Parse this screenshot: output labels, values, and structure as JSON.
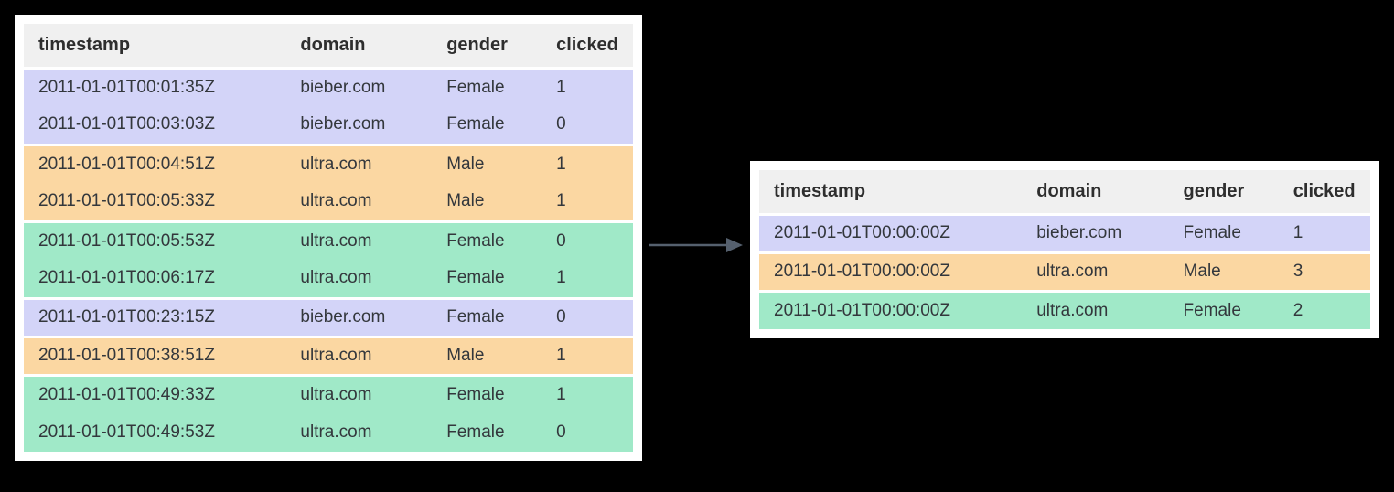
{
  "colors": {
    "background": "#000000",
    "panel": "#ffffff",
    "header_bg": "#f0f0f0",
    "header_text": "#2e2e2e",
    "cell_text": "#33373c",
    "arrow": "#55606e",
    "groups": {
      "bieber_female": "#d3d4f8",
      "ultra_male": "#fbd7a2",
      "ultra_female": "#a0e9c8"
    }
  },
  "left_table": {
    "columns": [
      "timestamp",
      "domain",
      "gender",
      "clicked"
    ],
    "rows": [
      {
        "group": "bieber_female",
        "cells": [
          "2011-01-01T00:01:35Z",
          "bieber.com",
          "Female",
          "1"
        ]
      },
      {
        "group": "bieber_female",
        "cells": [
          "2011-01-01T00:03:03Z",
          "bieber.com",
          "Female",
          "0"
        ]
      },
      {
        "group": "ultra_male",
        "cells": [
          "2011-01-01T00:04:51Z",
          "ultra.com",
          "Male",
          "1"
        ]
      },
      {
        "group": "ultra_male",
        "cells": [
          "2011-01-01T00:05:33Z",
          "ultra.com",
          "Male",
          "1"
        ]
      },
      {
        "group": "ultra_female",
        "cells": [
          "2011-01-01T00:05:53Z",
          "ultra.com",
          "Female",
          "0"
        ]
      },
      {
        "group": "ultra_female",
        "cells": [
          "2011-01-01T00:06:17Z",
          "ultra.com",
          "Female",
          "1"
        ]
      },
      {
        "group": "bieber_female",
        "cells": [
          "2011-01-01T00:23:15Z",
          "bieber.com",
          "Female",
          "0"
        ]
      },
      {
        "group": "ultra_male",
        "cells": [
          "2011-01-01T00:38:51Z",
          "ultra.com",
          "Male",
          "1"
        ]
      },
      {
        "group": "ultra_female",
        "cells": [
          "2011-01-01T00:49:33Z",
          "ultra.com",
          "Female",
          "1"
        ]
      },
      {
        "group": "ultra_female",
        "cells": [
          "2011-01-01T00:49:53Z",
          "ultra.com",
          "Female",
          "0"
        ]
      }
    ]
  },
  "right_table": {
    "columns": [
      "timestamp",
      "domain",
      "gender",
      "clicked"
    ],
    "rows": [
      {
        "group": "bieber_female",
        "cells": [
          "2011-01-01T00:00:00Z",
          "bieber.com",
          "Female",
          "1"
        ]
      },
      {
        "group": "ultra_male",
        "cells": [
          "2011-01-01T00:00:00Z",
          "ultra.com",
          "Male",
          "3"
        ]
      },
      {
        "group": "ultra_female",
        "cells": [
          "2011-01-01T00:00:00Z",
          "ultra.com",
          "Female",
          "2"
        ]
      }
    ]
  },
  "arrow": {
    "direction": "right"
  }
}
